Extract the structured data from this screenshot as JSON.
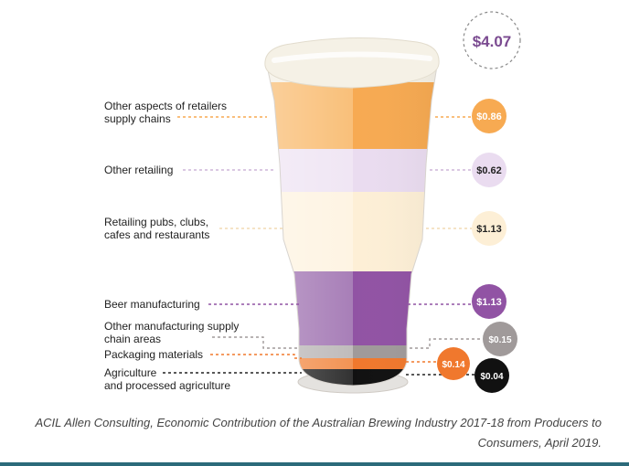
{
  "chart_data": {
    "type": "stacked-bar",
    "title": "",
    "total": {
      "label": "$4.07",
      "value": 4.07
    },
    "segments": [
      {
        "key": "other-aspects-retailers",
        "label": "Other aspects of retailers\nsupply chains",
        "value": 0.86,
        "value_label": "$0.86",
        "color": "#f7aa52",
        "color_light": "#f9c07a"
      },
      {
        "key": "other-retailing",
        "label": "Other retailing",
        "value": 0.62,
        "value_label": "$0.62",
        "color": "#eadcf0",
        "color_light": "#f0e6f4"
      },
      {
        "key": "retailing-pubs",
        "label": "Retailing pubs, clubs,\ncafes and restaurants",
        "value": 1.13,
        "value_label": "$1.13",
        "color": "#fdefd6",
        "color_light": "#fef4e3"
      },
      {
        "key": "beer-manufacturing",
        "label": "Beer manufacturing",
        "value": 1.13,
        "value_label": "$1.13",
        "color": "#9153a4",
        "color_light": "#a87fb8"
      },
      {
        "key": "other-manufacturing",
        "label": "Other manufacturing supply\nchain areas",
        "value": 0.15,
        "value_label": "$0.15",
        "color": "#a09a9a",
        "color_light": "#c0bcbc"
      },
      {
        "key": "packaging",
        "label": "Packaging materials",
        "value": 0.14,
        "value_label": "$0.14",
        "color": "#f0782d",
        "color_light": "#f39455"
      },
      {
        "key": "agriculture",
        "label": "Agriculture\nand processed agriculture",
        "value": 0.04,
        "value_label": "$0.04",
        "color": "#111111",
        "color_light": "#333333"
      }
    ]
  },
  "caption": "ACIL Allen Consulting, Economic Contribution of the Australian Brewing Industry 2017-18 from Producers to Consumers, April 2019."
}
